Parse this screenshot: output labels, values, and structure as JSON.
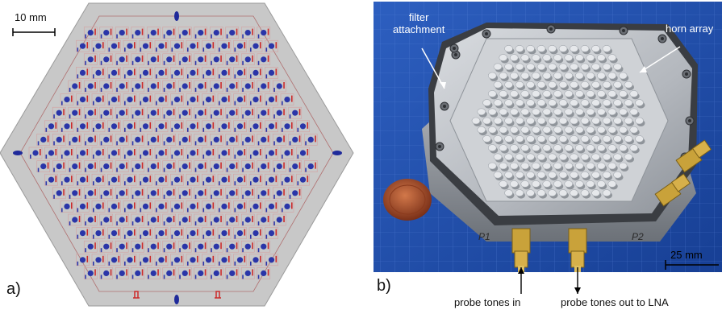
{
  "panel_a": {
    "label": "a)",
    "scale_bar": "10 mm",
    "colors": {
      "wafer": "#c7c7c7",
      "cell_border": "#d4a0a0",
      "pad": "#1f2a9a",
      "probe": "#cc2a2a"
    }
  },
  "panel_b": {
    "label": "b)",
    "scale_bar": "25 mm",
    "callout_filter_line1": "filter",
    "callout_filter_line2": "attachment",
    "callout_horn": "horn array",
    "arrow_in": "probe tones in",
    "arrow_out": "probe tones out to LNA",
    "marking_p1": "P1",
    "marking_p2": "P2",
    "colors": {
      "mat": "#1f4fae",
      "aluminum": "#b8bcc2",
      "sma": "#c9a23a",
      "penny": "#b2562d"
    }
  }
}
